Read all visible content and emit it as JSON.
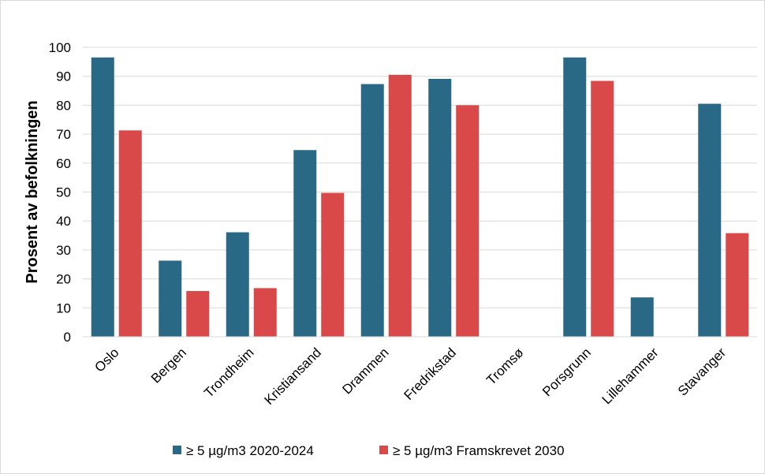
{
  "chart_data": {
    "type": "bar",
    "title": "",
    "xlabel": "",
    "ylabel": "Prosent av befolkningen",
    "ylim": [
      0,
      100
    ],
    "yticks": [
      0,
      10,
      20,
      30,
      40,
      50,
      60,
      70,
      80,
      90,
      100
    ],
    "grid": true,
    "legend_position": "bottom",
    "categories": [
      "Oslo",
      "Bergen",
      "Trondheim",
      "Kristiansand",
      "Drammen",
      "Fredrikstad",
      "Tromsø",
      "Porsgrunn",
      "Lillehammer",
      "Stavanger"
    ],
    "series": [
      {
        "name": "≥ 5 µg/m3 2020-2024",
        "color": "#2a6986",
        "values": [
          96.5,
          26.3,
          36.1,
          64.5,
          87.3,
          89.1,
          0,
          96.5,
          13.6,
          80.5
        ]
      },
      {
        "name": "≥ 5 µg/m3 Framskrevet 2030",
        "color": "#d9494a",
        "values": [
          71.3,
          15.8,
          16.8,
          49.7,
          90.5,
          80.0,
          0,
          88.4,
          0,
          35.8
        ]
      }
    ]
  }
}
